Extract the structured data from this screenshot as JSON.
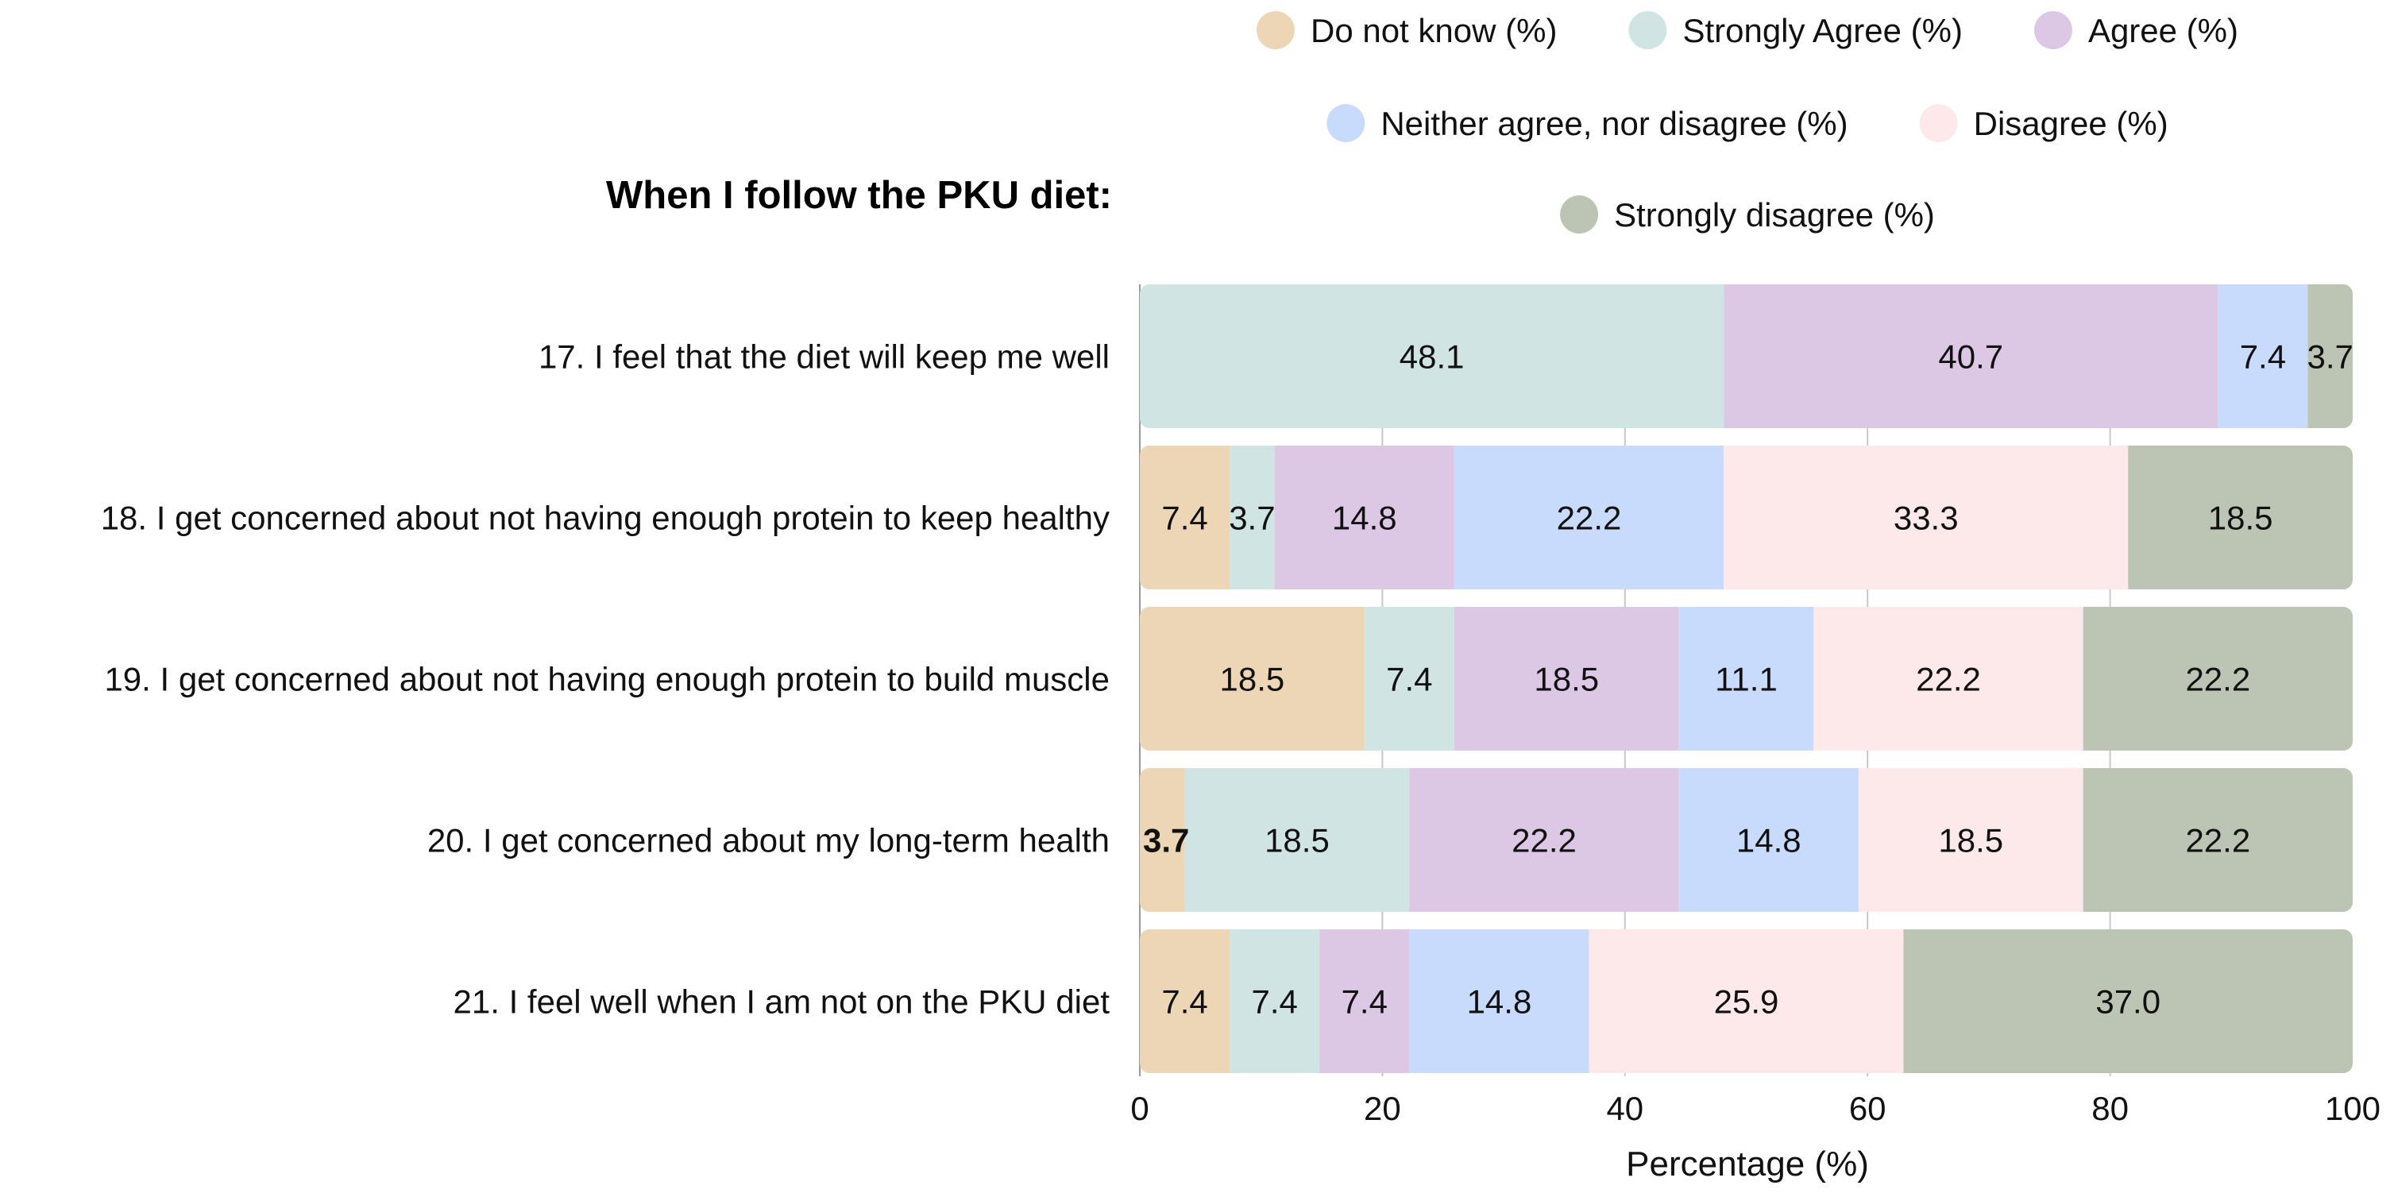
{
  "chart_data": {
    "type": "bar",
    "orientation": "horizontal",
    "stacked": true,
    "title": "When I follow the PKU diet:",
    "xlabel": "Percentage (%)",
    "ylabel": "",
    "xlim": [
      0,
      100
    ],
    "xticks": [
      "0",
      "20",
      "40",
      "60",
      "80",
      "100"
    ],
    "legend_position": "top-right",
    "grid": true,
    "categories": [
      "17. I feel that the diet will keep me well",
      "18. I get concerned about not having enough protein to keep healthy",
      "19. I get concerned about not having enough protein to build muscle",
      "20. I get concerned about my long-term health",
      "21. I feel well when I am not on the PKU diet"
    ],
    "series": [
      {
        "name": "Do not know (%)",
        "color": "#ecd6b6",
        "values": [
          0,
          7.4,
          18.5,
          3.7,
          7.4
        ],
        "labels": [
          "",
          "7.4",
          "18.5",
          "3.7",
          "7.4"
        ]
      },
      {
        "name": "Strongly Agree (%)",
        "color": "#d0e5e3",
        "values": [
          48.1,
          3.7,
          7.4,
          18.5,
          7.4
        ],
        "labels": [
          "48.1",
          "3.7",
          "7.4",
          "18.5",
          "7.4"
        ]
      },
      {
        "name": "Agree (%)",
        "color": "#dcc7e4",
        "values": [
          40.7,
          14.8,
          18.5,
          22.2,
          7.4
        ],
        "labels": [
          "40.7",
          "14.8",
          "18.5",
          "22.2",
          "7.4"
        ]
      },
      {
        "name": "Neither agree, nor disagree (%)",
        "color": "#c8dbfc",
        "values": [
          7.4,
          22.2,
          11.1,
          14.8,
          14.8
        ],
        "labels": [
          "7.4",
          "22.2",
          "11.1",
          "14.8",
          "14.8"
        ]
      },
      {
        "name": "Disagree (%)",
        "color": "#fde9ea",
        "values": [
          0,
          33.3,
          22.2,
          18.5,
          25.9
        ],
        "labels": [
          "",
          "33.3",
          "22.2",
          "18.5",
          "25.9"
        ]
      },
      {
        "name": "Strongly disagree (%)",
        "color": "#bcc5b4",
        "values": [
          3.7,
          18.5,
          22.2,
          22.2,
          37.0
        ],
        "labels": [
          "3.7",
          "18.5",
          "22.2",
          "22.2",
          "37.0"
        ]
      }
    ]
  }
}
